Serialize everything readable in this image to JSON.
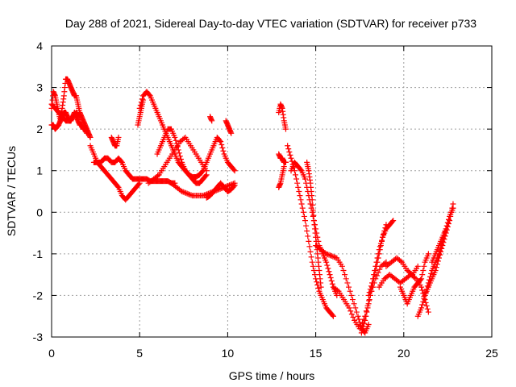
{
  "chart_data": {
    "type": "scatter",
    "title": "Day 288 of 2021, Sidereal Day-to-day VTEC variation (SDTVAR) for receiver p733",
    "xlabel": "GPS time / hours",
    "ylabel": "SDTVAR / TECUs",
    "xlim": [
      0,
      25
    ],
    "ylim": [
      -3,
      4
    ],
    "xticks": [
      0,
      5,
      10,
      15,
      20,
      25
    ],
    "yticks": [
      -3,
      -2,
      -1,
      0,
      1,
      2,
      3,
      4
    ],
    "grid": true,
    "legend": "none",
    "marker": "plus",
    "color": "#ff0000",
    "series": [
      {
        "x": [
          0.0,
          0.1,
          0.2,
          0.3,
          0.4,
          0.5,
          0.6,
          0.7,
          0.8,
          0.9,
          1.0,
          1.1,
          1.2,
          1.3,
          1.4,
          1.5,
          1.6,
          1.7,
          1.8,
          1.9,
          2.0,
          2.1,
          2.2
        ],
        "y": [
          2.5,
          2.9,
          2.8,
          2.6,
          2.4,
          2.2,
          2.5,
          2.8,
          3.2,
          3.2,
          3.1,
          3.0,
          2.9,
          2.8,
          2.8,
          2.6,
          2.4,
          2.3,
          2.2,
          2.1,
          2.0,
          1.9,
          1.8
        ]
      },
      {
        "x": [
          0.0,
          0.1,
          0.2,
          0.3,
          0.4,
          0.5,
          0.6,
          0.7,
          0.8,
          0.9,
          1.0,
          1.1,
          1.2,
          1.3,
          1.4,
          1.5,
          1.6,
          1.7,
          1.8,
          1.9,
          2.0
        ],
        "y": [
          2.1,
          2.1,
          2.0,
          2.05,
          2.1,
          2.2,
          2.3,
          2.4,
          2.4,
          2.3,
          2.2,
          2.2,
          2.3,
          2.4,
          2.3,
          2.2,
          2.1,
          2.1,
          2.0,
          2.0,
          1.9
        ]
      },
      {
        "x": [
          0.0,
          0.2,
          0.4,
          0.6,
          0.8,
          1.0,
          1.2,
          1.4,
          1.6
        ],
        "y": [
          2.6,
          2.5,
          2.4,
          2.3,
          2.2,
          2.2,
          2.3,
          2.4,
          2.3
        ]
      },
      {
        "x": [
          2.2,
          2.4,
          2.6,
          2.8,
          3.0,
          3.2,
          3.4,
          3.6,
          3.8,
          4.0,
          4.2,
          4.4,
          4.6,
          4.8,
          5.0
        ],
        "y": [
          1.6,
          1.4,
          1.2,
          1.1,
          1.0,
          0.9,
          0.8,
          0.7,
          0.6,
          0.4,
          0.3,
          0.4,
          0.5,
          0.6,
          0.7
        ]
      },
      {
        "x": [
          2.4,
          2.6,
          2.8,
          3.0,
          3.2,
          3.4,
          3.6,
          3.8,
          4.0,
          4.2,
          4.4,
          4.6,
          4.8,
          5.0,
          5.2,
          5.4,
          5.6,
          5.8,
          6.0,
          6.2,
          6.4,
          6.6,
          6.8,
          7.0
        ],
        "y": [
          1.2,
          1.2,
          1.2,
          1.3,
          1.3,
          1.2,
          1.2,
          1.3,
          1.2,
          1.0,
          0.9,
          0.8,
          0.8,
          0.8,
          0.8,
          0.8,
          0.75,
          0.75,
          0.75,
          0.75,
          0.75,
          0.75,
          0.7,
          0.7
        ]
      },
      {
        "x": [
          3.4,
          3.5,
          3.6,
          3.7,
          3.8
        ],
        "y": [
          1.8,
          1.7,
          1.6,
          1.6,
          1.8
        ]
      },
      {
        "x": [
          5.0,
          5.2,
          5.4,
          5.6,
          5.8,
          6.0,
          6.2,
          6.4,
          6.6,
          6.8,
          7.0,
          7.2,
          7.4,
          7.6,
          7.8,
          8.0,
          8.2,
          8.4,
          8.6,
          8.8,
          9.0,
          9.2,
          9.4,
          9.6,
          9.8,
          10.0,
          10.2,
          10.4
        ],
        "y": [
          2.5,
          2.8,
          2.9,
          2.8,
          2.6,
          2.4,
          2.2,
          2.0,
          1.8,
          1.6,
          1.4,
          1.2,
          1.1,
          1.0,
          0.9,
          0.85,
          0.85,
          0.9,
          1.0,
          1.2,
          1.4,
          1.6,
          1.8,
          1.7,
          1.4,
          1.2,
          1.1,
          1.0
        ]
      },
      {
        "x": [
          4.9,
          5.0,
          5.1,
          5.2
        ],
        "y": [
          2.1,
          2.3,
          2.5,
          2.7
        ]
      },
      {
        "x": [
          5.5,
          5.8,
          6.1,
          6.4,
          6.7,
          7.0,
          7.3,
          7.6,
          7.9,
          8.2,
          8.5,
          8.8
        ],
        "y": [
          0.7,
          0.8,
          0.9,
          1.1,
          1.3,
          1.5,
          1.7,
          1.8,
          1.6,
          1.4,
          1.2,
          1.0
        ]
      },
      {
        "x": [
          6.0,
          6.2,
          6.4,
          6.6,
          6.8,
          7.0,
          7.2,
          7.4,
          7.6,
          7.8,
          8.0,
          8.2,
          8.4,
          8.6,
          8.8
        ],
        "y": [
          1.4,
          1.6,
          1.8,
          2.0,
          2.0,
          1.8,
          1.5,
          1.2,
          1.0,
          0.9,
          0.8,
          0.7,
          0.7,
          0.8,
          0.9
        ]
      },
      {
        "x": [
          6.8,
          7.1,
          7.4,
          7.7,
          8.0,
          8.3,
          8.6,
          8.9,
          9.2,
          9.5,
          9.8,
          10.1,
          10.4
        ],
        "y": [
          0.7,
          0.6,
          0.5,
          0.45,
          0.4,
          0.4,
          0.4,
          0.45,
          0.5,
          0.55,
          0.6,
          0.65,
          0.7
        ]
      },
      {
        "x": [
          8.8,
          9.0,
          9.2,
          9.4,
          9.6,
          9.8,
          10.0,
          10.2,
          10.4
        ],
        "y": [
          0.35,
          0.4,
          0.5,
          0.6,
          0.7,
          0.6,
          0.5,
          0.55,
          0.65
        ]
      },
      {
        "x": [
          9.0,
          9.1
        ],
        "y": [
          2.3,
          2.2
        ]
      },
      {
        "x": [
          9.9,
          10.0,
          10.1,
          10.2
        ],
        "y": [
          2.2,
          2.1,
          2.0,
          1.9
        ]
      },
      {
        "x": [
          12.9,
          13.0,
          13.1,
          13.2,
          13.3
        ],
        "y": [
          2.4,
          2.6,
          2.5,
          2.2,
          2.0
        ]
      },
      {
        "x": [
          12.9,
          13.0,
          13.1,
          13.2,
          13.3
        ],
        "y": [
          1.4,
          1.3,
          1.3,
          1.2,
          1.2
        ]
      },
      {
        "x": [
          12.9,
          13.0,
          13.1,
          13.2
        ],
        "y": [
          0.6,
          0.7,
          0.9,
          1.1
        ]
      },
      {
        "x": [
          13.4,
          13.6,
          13.8,
          14.0,
          14.2,
          14.4,
          14.6,
          14.8,
          15.0,
          15.2,
          15.4,
          15.6,
          15.8,
          16.0
        ],
        "y": [
          1.6,
          1.3,
          1.0,
          0.6,
          0.2,
          -0.2,
          -0.7,
          -1.2,
          -1.6,
          -1.9,
          -2.1,
          -2.3,
          -2.4,
          -2.5
        ]
      },
      {
        "x": [
          13.6,
          13.8,
          14.0,
          14.2,
          14.4,
          14.6,
          14.8,
          15.0,
          15.2,
          15.4,
          15.6,
          15.8,
          16.0,
          16.2
        ],
        "y": [
          1.0,
          1.2,
          1.1,
          1.0,
          0.8,
          0.4,
          0.0,
          -0.4,
          -0.8,
          -1.0,
          -1.2,
          -1.5,
          -1.8,
          -2.0
        ]
      },
      {
        "x": [
          14.5,
          14.6,
          14.7,
          14.8,
          14.9,
          15.0,
          15.1,
          15.2,
          15.3
        ],
        "y": [
          1.2,
          1.0,
          0.7,
          0.3,
          -0.2,
          -0.6,
          -1.0,
          -1.4,
          -1.8
        ]
      },
      {
        "x": [
          15.0,
          15.3,
          15.6,
          15.9,
          16.2,
          16.5,
          16.8,
          17.1,
          17.4,
          17.6,
          17.8,
          18.0
        ],
        "y": [
          -0.8,
          -0.9,
          -1.0,
          -1.05,
          -1.1,
          -1.3,
          -1.7,
          -2.1,
          -2.5,
          -2.8,
          -2.9,
          -2.7
        ]
      },
      {
        "x": [
          16.0,
          16.3,
          16.6,
          16.9,
          17.2,
          17.5,
          17.8,
          18.1,
          18.4,
          18.7,
          19.0
        ],
        "y": [
          -1.8,
          -1.9,
          -2.1,
          -2.3,
          -2.6,
          -2.8,
          -2.5,
          -2.0,
          -1.6,
          -1.3,
          -1.2
        ]
      },
      {
        "x": [
          17.6,
          17.8,
          18.0,
          18.2,
          18.4,
          18.6,
          18.8,
          19.0
        ],
        "y": [
          -2.9,
          -2.6,
          -2.2,
          -1.8,
          -1.4,
          -1.0,
          -0.6,
          -0.3
        ]
      },
      {
        "x": [
          18.0,
          18.2,
          18.4,
          18.6,
          18.8,
          19.0,
          19.2,
          19.4
        ],
        "y": [
          -2.0,
          -1.7,
          -1.3,
          -0.9,
          -0.6,
          -0.4,
          -0.3,
          -0.2
        ]
      },
      {
        "x": [
          18.6,
          18.9,
          19.2,
          19.5,
          19.8,
          20.1,
          20.4,
          20.7,
          21.0,
          21.2,
          21.4
        ],
        "y": [
          -1.8,
          -1.6,
          -1.5,
          -1.6,
          -1.7,
          -1.6,
          -1.5,
          -1.6,
          -1.8,
          -2.1,
          -2.4
        ]
      },
      {
        "x": [
          19.0,
          19.3,
          19.6,
          19.9,
          20.2,
          20.5,
          20.8
        ],
        "y": [
          -1.3,
          -1.2,
          -1.1,
          -1.2,
          -1.4,
          -1.5,
          -1.3
        ]
      },
      {
        "x": [
          19.8,
          20.0,
          20.2,
          20.4,
          20.6,
          20.8,
          21.0,
          21.2,
          21.4
        ],
        "y": [
          -1.8,
          -2.0,
          -2.2,
          -2.0,
          -1.8,
          -1.7,
          -1.6,
          -1.2,
          -1.0
        ]
      },
      {
        "x": [
          20.8,
          21.0,
          21.2,
          21.4,
          21.6,
          21.8,
          22.0,
          22.2,
          22.4,
          22.6,
          22.8
        ],
        "y": [
          -2.5,
          -2.3,
          -2.0,
          -1.7,
          -1.4,
          -1.2,
          -1.0,
          -0.7,
          -0.4,
          -0.1,
          0.1
        ]
      },
      {
        "x": [
          21.2,
          21.4,
          21.6,
          21.8,
          22.0,
          22.2,
          22.4,
          22.6,
          22.8
        ],
        "y": [
          -2.0,
          -1.8,
          -1.6,
          -1.4,
          -1.1,
          -0.8,
          -0.5,
          -0.2,
          0.2
        ]
      },
      {
        "x": [
          21.6,
          21.8,
          22.0,
          22.2,
          22.4,
          22.6,
          22.8
        ],
        "y": [
          -1.2,
          -1.0,
          -0.8,
          -0.6,
          -0.4,
          -0.1,
          0.1
        ]
      }
    ]
  }
}
